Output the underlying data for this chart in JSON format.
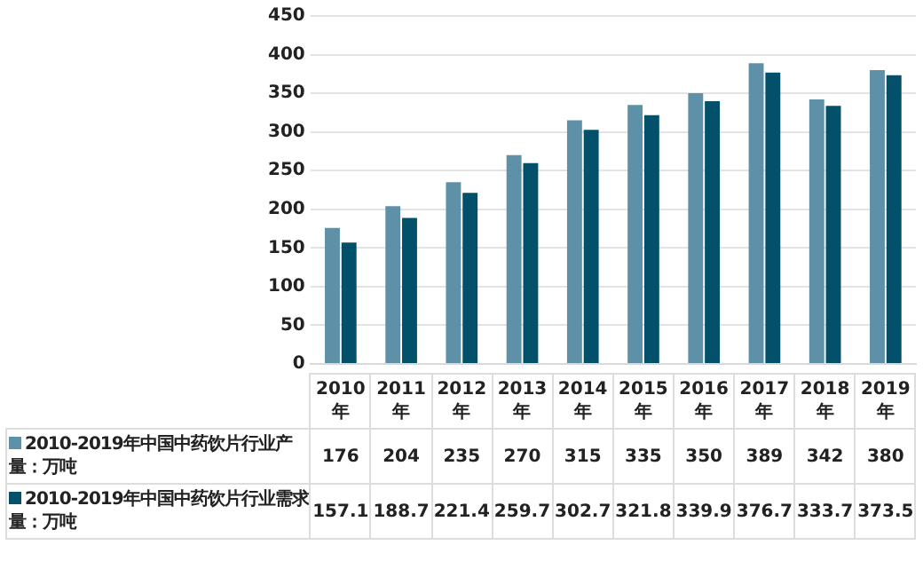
{
  "chart_data": {
    "type": "bar",
    "categories": [
      "2010年",
      "2011年",
      "2012年",
      "2013年",
      "2014年",
      "2015年",
      "2016年",
      "2017年",
      "2018年",
      "2019年"
    ],
    "series": [
      {
        "name": "2010-2019年中国中药饮片行业产量：万吨",
        "color": "#5e90a8",
        "values": [
          176,
          204,
          235,
          270,
          315,
          335,
          350,
          389,
          342,
          380
        ]
      },
      {
        "name": "2010-2019年中国中药饮片行业需求量：万吨",
        "color": "#03506b",
        "values": [
          157.1,
          188.7,
          221.4,
          259.7,
          302.7,
          321.8,
          339.9,
          376.7,
          333.7,
          373.5
        ]
      }
    ],
    "ylim": [
      0,
      450
    ],
    "yticks": [
      0,
      50,
      100,
      150,
      200,
      250,
      300,
      350,
      400,
      450
    ],
    "grid": "y",
    "legend": "bottom",
    "data_labels": true
  }
}
